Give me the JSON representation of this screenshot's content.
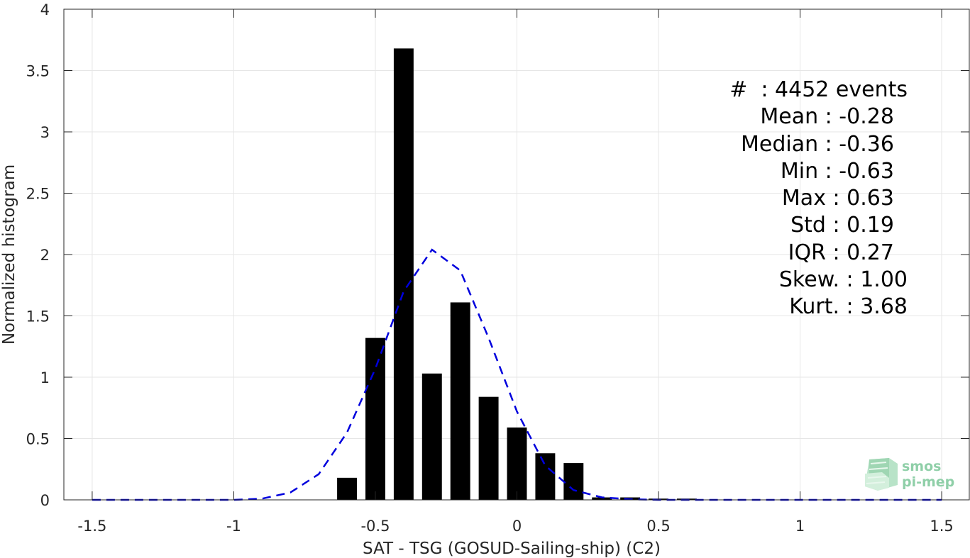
{
  "chart_data": {
    "type": "bar",
    "xlabel": "SAT - TSG (GOSUD-Sailing-ship) (C2)",
    "ylabel": "Normalized histogram",
    "xlim": [
      -1.6,
      1.6
    ],
    "ylim": [
      0,
      4
    ],
    "grid": true,
    "x_ticks": [
      -1.5,
      -1,
      -0.5,
      0,
      0.5,
      1,
      1.5
    ],
    "x_tick_labels": [
      "-1.5",
      "-1",
      "-0.5",
      "0",
      "0.5",
      "1",
      "1.5"
    ],
    "y_ticks": [
      0,
      0.5,
      1,
      1.5,
      2,
      2.5,
      3,
      3.5,
      4
    ],
    "y_tick_labels": [
      "0",
      "0.5",
      "1",
      "1.5",
      "2",
      "2.5",
      "3",
      "3.5",
      "4"
    ],
    "series": [
      {
        "type": "bar",
        "color": "#000000",
        "bar_width": 0.07,
        "x": [
          -0.6,
          -0.5,
          -0.4,
          -0.3,
          -0.2,
          -0.1,
          0.0,
          0.1,
          0.2,
          0.3,
          0.4,
          0.5,
          0.6
        ],
        "values": [
          0.18,
          1.32,
          3.68,
          1.03,
          1.61,
          0.84,
          0.59,
          0.38,
          0.3,
          0.02,
          0.02,
          0.01,
          0.01
        ]
      },
      {
        "type": "line",
        "style": "dashed",
        "color": "#0000dd",
        "x": [
          -1.5,
          -1.4,
          -1.3,
          -1.2,
          -1.1,
          -1.0,
          -0.9,
          -0.8,
          -0.7,
          -0.6,
          -0.5,
          -0.4,
          -0.3,
          -0.2,
          -0.1,
          0.0,
          0.1,
          0.2,
          0.3,
          0.4,
          0.5,
          0.6,
          0.7,
          0.8,
          0.9,
          1.0,
          1.1,
          1.2,
          1.3,
          1.4,
          1.5
        ],
        "values": [
          0,
          0,
          0,
          0,
          0,
          0,
          0.01,
          0.06,
          0.21,
          0.55,
          1.07,
          1.7,
          2.04,
          1.87,
          1.32,
          0.72,
          0.28,
          0.08,
          0.02,
          0.005,
          0,
          0,
          0,
          0,
          0,
          0,
          0,
          0,
          0,
          0,
          0
        ]
      }
    ],
    "annotations": [
      "#  : 4452 events",
      "Mean : -0.28  ",
      "Median : -0.36  ",
      "Min : -0.63  ",
      "Max : 0.63  ",
      "Std : 0.19  ",
      "IQR : 0.27  ",
      "Skew. : 1.00",
      "Kurt. : 3.68"
    ]
  },
  "logo": {
    "line1": "smos",
    "line2": "pi-mep"
  }
}
